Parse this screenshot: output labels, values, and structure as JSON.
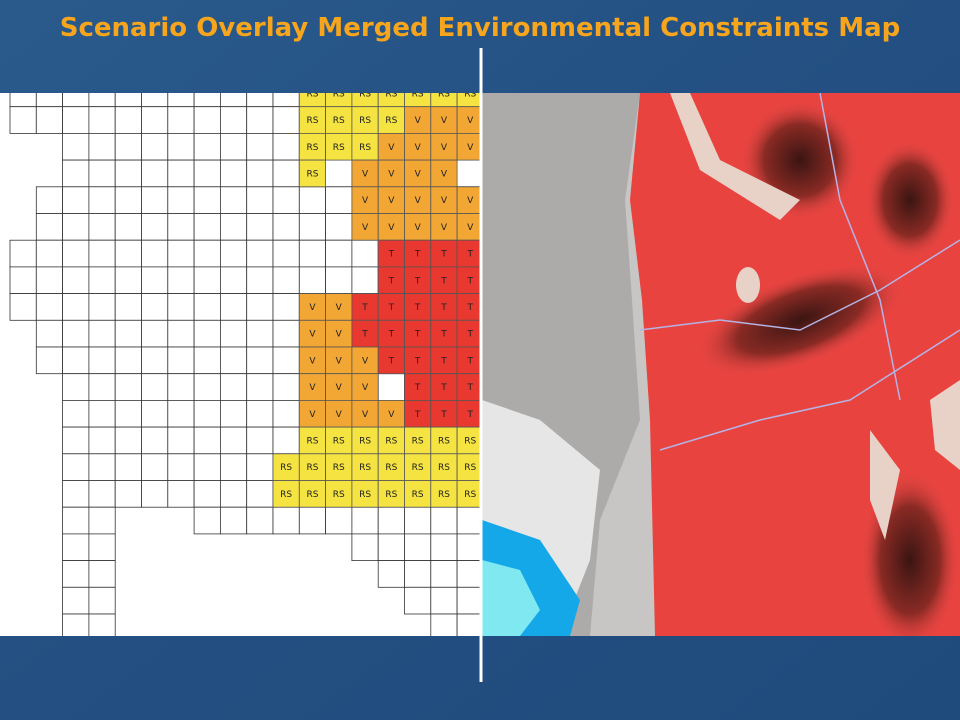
{
  "title": "Scenario Overlay Merged Environmental Constraints Map",
  "zone_colors": {
    "RS": "#f4e340",
    "V": "#f2a634",
    "T": "#e8382f"
  },
  "grid": {
    "rows": [
      [
        "RS",
        "RS",
        "RS",
        "RS",
        "RS",
        "RS",
        "RS"
      ],
      [
        "RS",
        "RS",
        "RS",
        "RS",
        "V",
        "V",
        "V"
      ],
      [
        "RS",
        "RS",
        "RS",
        "V",
        "V",
        "V",
        "V"
      ],
      [
        "RS",
        "V",
        "V",
        "V",
        "V"
      ],
      [
        "V",
        "V",
        "V",
        "V",
        "V"
      ],
      [
        "V",
        "V",
        "V",
        "V",
        "V"
      ],
      [
        "T",
        "T",
        "T",
        "T"
      ],
      [
        "T",
        "T",
        "T",
        "T"
      ],
      [
        "V",
        "V",
        "T",
        "T",
        "T",
        "T",
        "T"
      ],
      [
        "V",
        "V",
        "T",
        "T",
        "T",
        "T",
        "T"
      ],
      [
        "V",
        "V",
        "V",
        "T",
        "T",
        "T",
        "T"
      ],
      [
        "V",
        "V",
        "V",
        "T",
        "T",
        "T"
      ],
      [
        "V",
        "V",
        "V",
        "V",
        "T",
        "T",
        "T"
      ],
      [
        "RS",
        "RS",
        "RS",
        "RS",
        "RS",
        "RS",
        "RS"
      ],
      [
        "RS",
        "RS",
        "RS",
        "RS",
        "RS",
        "RS",
        "RS",
        "RS"
      ],
      [
        "RS",
        "RS",
        "RS",
        "RS",
        "RS",
        "RS",
        "RS",
        "RS"
      ]
    ]
  }
}
